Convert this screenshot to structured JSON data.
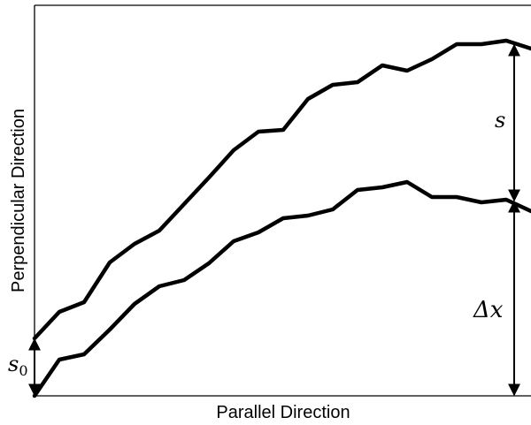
{
  "diagram": {
    "xlabel": "Parallel Direction",
    "ylabel": "Perpendicular Direction",
    "annotations": {
      "s": "s",
      "delta_x": "Δx",
      "s0": "s",
      "s0_subscript": "0"
    },
    "line_color": "#000000"
  }
}
